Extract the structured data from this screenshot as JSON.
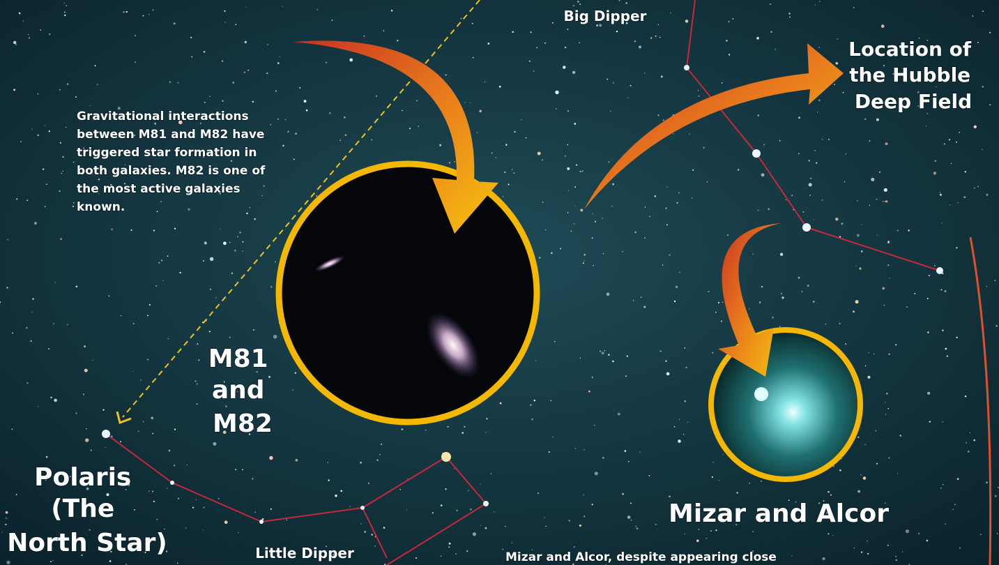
{
  "labels": {
    "big_dipper": "Big Dipper",
    "hubble": [
      "Location of",
      "the Hubble",
      "Deep Field"
    ],
    "description": [
      "Gravitational interactions",
      "between M81 and M82 have",
      "triggered star formation in",
      "both galaxies.  M82 is one of",
      "the most active galaxies",
      "known."
    ],
    "galaxies": [
      "M81",
      "and",
      "M82"
    ],
    "polaris": [
      "Polaris",
      "(The",
      "North Star)"
    ],
    "little_dipper": "Little Dipper",
    "mizar": "Mizar and Alcor",
    "mizar_note": "Mizar and Alcor, despite appearing close"
  }
}
